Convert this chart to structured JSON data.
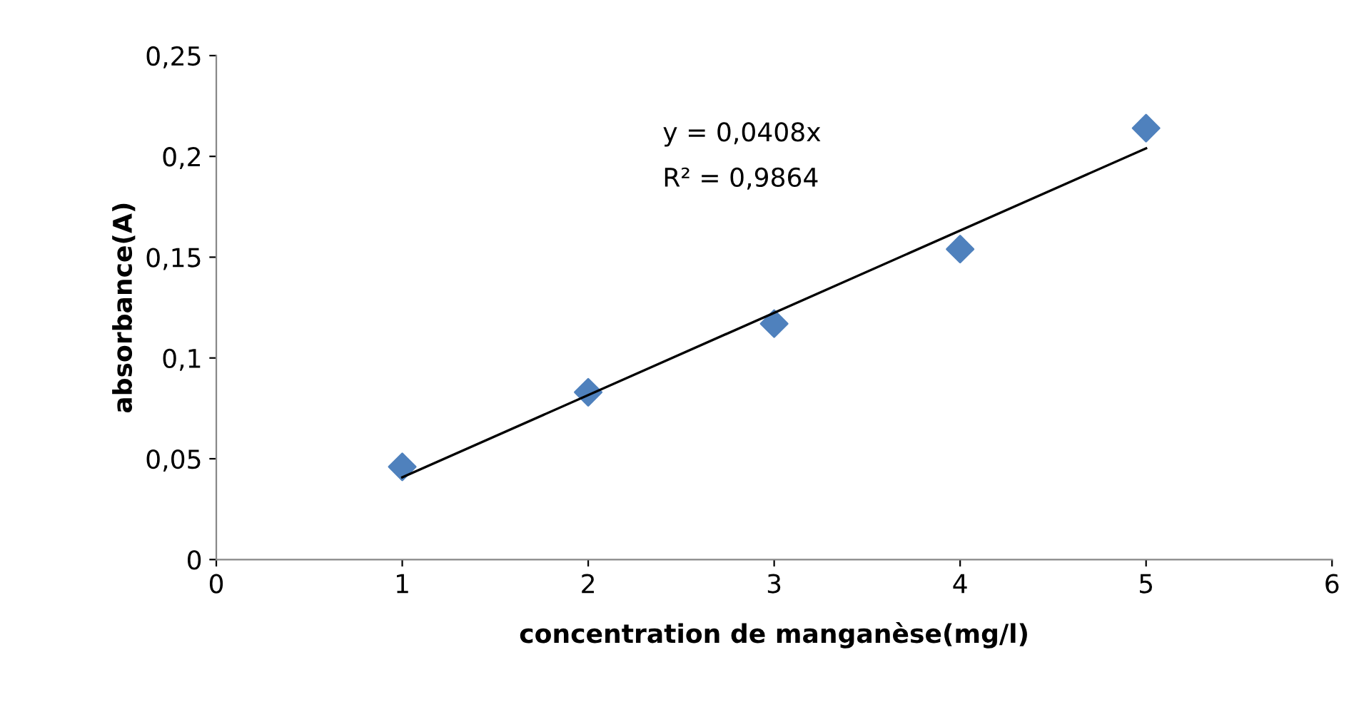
{
  "chart_data": {
    "type": "scatter",
    "xlabel": "concentration de manganèse(mg/l)",
    "ylabel": "absorbance(A)",
    "x": [
      1,
      2,
      3,
      4,
      5
    ],
    "series": [
      {
        "color": "#4f81bd",
        "values": [
          0.046,
          0.083,
          0.117,
          0.154,
          0.214
        ],
        "marker": "diamond"
      },
      {
        "type": "line",
        "color": "#000000",
        "x": [
          1,
          5
        ],
        "values": [
          0.0408,
          0.204
        ],
        "marker": "none"
      }
    ],
    "xlim": [
      0,
      6
    ],
    "xticks": [
      0,
      1,
      2,
      3,
      4,
      5,
      6
    ],
    "ylim": [
      0,
      0.25
    ],
    "yticks": [
      {
        "value": 0,
        "label": "0"
      },
      {
        "value": 0.05,
        "label": "0,05"
      },
      {
        "value": 0.1,
        "label": "0,1"
      },
      {
        "value": 0.15,
        "label": "0,15"
      },
      {
        "value": 0.2,
        "label": "0,2"
      },
      {
        "value": 0.25,
        "label": "0,25"
      }
    ],
    "annotations": [
      "y = 0,0408x",
      "R² = 0,9864"
    ],
    "grid": false,
    "legend": false
  }
}
